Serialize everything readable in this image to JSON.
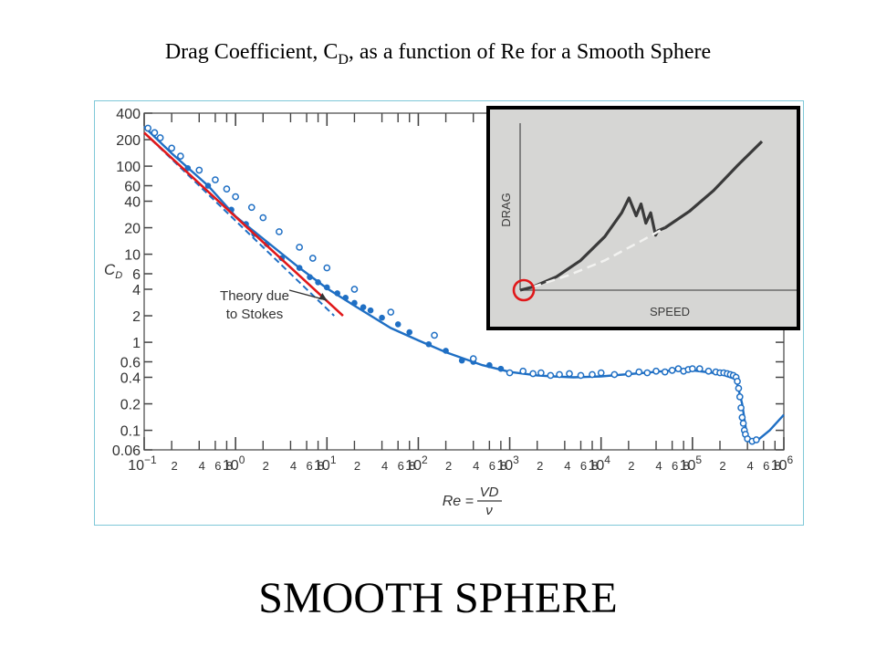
{
  "slide": {
    "title_prefix": "Drag Coefficient, C",
    "title_sub": "D",
    "title_suffix": ", as a function of Re for a Smooth Sphere",
    "footer": "SMOOTH SPHERE"
  },
  "chart_data": [
    {
      "type": "scatter",
      "xscale": "log",
      "yscale": "log",
      "xlim": [
        0.1,
        1000000
      ],
      "ylim": [
        0.06,
        400
      ],
      "ylabel": "C_D",
      "xlabel": "Re = VD/ν",
      "xlabel_parts": {
        "lhs": "Re =",
        "num": "VD",
        "den": "ν"
      },
      "y_ticks": [
        {
          "v": 400,
          "label": "400"
        },
        {
          "v": 200,
          "label": "200"
        },
        {
          "v": 100,
          "label": "100"
        },
        {
          "v": 60,
          "label": "60"
        },
        {
          "v": 40,
          "label": "40"
        },
        {
          "v": 20,
          "label": "20"
        },
        {
          "v": 10,
          "label": "10"
        },
        {
          "v": 6,
          "label": "6"
        },
        {
          "v": 4,
          "label": "4"
        },
        {
          "v": 2,
          "label": "2"
        },
        {
          "v": 1,
          "label": "1"
        },
        {
          "v": 0.6,
          "label": "0.6"
        },
        {
          "v": 0.4,
          "label": "0.4"
        },
        {
          "v": 0.2,
          "label": "0.2"
        },
        {
          "v": 0.1,
          "label": "0.1"
        },
        {
          "v": 0.06,
          "label": "0.06"
        }
      ],
      "x_ticks_major": [
        {
          "v": 0.1,
          "base": "10",
          "exp": "−1"
        },
        {
          "v": 1,
          "base": "10",
          "exp": "0"
        },
        {
          "v": 10,
          "base": "10",
          "exp": "1"
        },
        {
          "v": 100,
          "base": "10",
          "exp": "2"
        },
        {
          "v": 1000,
          "base": "10",
          "exp": "3"
        },
        {
          "v": 10000,
          "base": "10",
          "exp": "4"
        },
        {
          "v": 100000,
          "base": "10",
          "exp": "5"
        },
        {
          "v": 1000000,
          "base": "10",
          "exp": "6"
        }
      ],
      "x_ticks_minor_mults": [
        2,
        4,
        6,
        8
      ],
      "x_minor_labels": [
        "2",
        "4",
        "6",
        "8"
      ],
      "curve": {
        "name": "",
        "color": "#1f6fc4",
        "x": [
          0.1,
          0.2,
          0.5,
          1,
          2,
          5,
          10,
          20,
          50,
          100,
          200,
          500,
          1000,
          2000,
          3000,
          5000,
          10000,
          30000,
          60000,
          100000,
          200000,
          300000,
          350000,
          400000,
          500000,
          700000,
          1000000
        ],
        "y": [
          280,
          140,
          60,
          27,
          15,
          7,
          4.1,
          2.6,
          1.45,
          1.05,
          0.77,
          0.55,
          0.46,
          0.42,
          0.41,
          0.4,
          0.41,
          0.45,
          0.48,
          0.48,
          0.44,
          0.38,
          0.2,
          0.08,
          0.075,
          0.1,
          0.15
        ]
      },
      "filled_points": {
        "color": "#1f6fc4",
        "x": [
          0.3,
          0.5,
          0.9,
          1.3,
          1.6,
          2.2,
          3.2,
          5,
          6.5,
          8,
          10,
          13,
          16,
          20,
          25,
          30,
          40,
          60,
          80,
          130,
          200,
          300,
          400,
          600,
          800,
          1000
        ],
        "y": [
          95,
          60,
          32,
          22,
          17,
          13,
          9,
          7,
          5.5,
          4.8,
          4.2,
          3.6,
          3.2,
          2.8,
          2.5,
          2.3,
          1.9,
          1.6,
          1.3,
          0.95,
          0.8,
          0.62,
          0.6,
          0.55,
          0.5,
          0.45
        ]
      },
      "open_points": {
        "color": "#1f6fc4",
        "x": [
          0.11,
          0.13,
          0.15,
          0.2,
          0.25,
          0.4,
          0.6,
          0.8,
          1,
          1.5,
          2,
          3,
          5,
          7,
          10,
          20,
          50,
          150,
          400,
          1000,
          1400,
          1800,
          2200,
          2800,
          3500,
          4500,
          6000,
          8000,
          10000,
          14000,
          20000,
          26000,
          32000,
          40000,
          50000,
          60000,
          70000,
          80000,
          90000,
          100000,
          120000,
          150000,
          180000,
          200000,
          220000,
          240000,
          260000,
          280000,
          300000,
          310000,
          320000,
          330000,
          340000,
          350000,
          360000,
          370000,
          380000,
          400000,
          450000,
          500000
        ],
        "y": [
          270,
          240,
          210,
          160,
          130,
          90,
          70,
          55,
          45,
          34,
          26,
          18,
          12,
          9,
          7,
          4,
          2.2,
          1.2,
          0.65,
          0.45,
          0.47,
          0.44,
          0.45,
          0.42,
          0.43,
          0.44,
          0.42,
          0.43,
          0.45,
          0.43,
          0.44,
          0.46,
          0.45,
          0.47,
          0.46,
          0.48,
          0.5,
          0.47,
          0.49,
          0.5,
          0.5,
          0.47,
          0.46,
          0.45,
          0.45,
          0.44,
          0.43,
          0.42,
          0.4,
          0.36,
          0.3,
          0.24,
          0.18,
          0.14,
          0.12,
          0.1,
          0.09,
          0.08,
          0.075,
          0.078
        ]
      },
      "stokes_theory": {
        "color": "#1f6fc4",
        "dashed": true,
        "x": [
          0.1,
          12
        ],
        "y": [
          240,
          2
        ]
      },
      "red_overlay_line": {
        "color": "#e0181a",
        "x": [
          0.1,
          15
        ],
        "y": [
          240,
          2
        ]
      },
      "annotation": {
        "lines": [
          "Theory due",
          "to Stokes"
        ],
        "arrow_to": {
          "x": 10,
          "y": 3
        }
      }
    },
    {
      "type": "line",
      "xlabel": "SPEED",
      "ylabel": "DRAG",
      "x_ticks": [],
      "y_ticks": [],
      "series": [
        {
          "name": "",
          "style": "solid",
          "color": "#3a3a3a",
          "x": [
            0,
            0.05,
            0.15,
            0.25,
            0.35,
            0.42,
            0.45,
            0.48,
            0.5,
            0.52,
            0.54,
            0.56,
            0.57,
            0.6,
            0.7,
            0.8,
            0.9,
            1.0
          ],
          "y": [
            0,
            0.02,
            0.09,
            0.2,
            0.36,
            0.52,
            0.62,
            0.5,
            0.58,
            0.45,
            0.52,
            0.37,
            0.4,
            0.42,
            0.53,
            0.67,
            0.84,
            1.0
          ]
        },
        {
          "name": "",
          "style": "dashed",
          "color": "#f2f2f0",
          "x": [
            0.05,
            0.2,
            0.35,
            0.5,
            0.6
          ],
          "y": [
            0.02,
            0.1,
            0.2,
            0.33,
            0.42
          ]
        }
      ],
      "highlight": {
        "shape": "circle",
        "color": "#e0181a",
        "at": {
          "x": 0,
          "y": 0
        }
      }
    }
  ]
}
